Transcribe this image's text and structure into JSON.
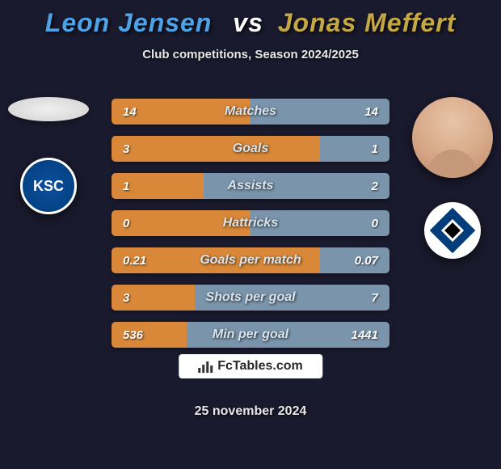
{
  "title": {
    "player1": "Leon Jensen",
    "vs": "vs",
    "player2": "Jonas Meffert",
    "player1_color": "#4da3e8",
    "player2_color": "#c4a845",
    "vs_color": "#ffffff",
    "fontsize": 32
  },
  "subtitle": {
    "text": "Club competitions, Season 2024/2025",
    "color": "#e8e8e8",
    "fontsize": 15
  },
  "clubs": {
    "left_label": "KSC",
    "left_bg": "#0d4f9e",
    "right_bg": "#003d7a"
  },
  "stats": {
    "left_color": "#d88838",
    "right_color": "#7a95ab",
    "label_color": "#d8e4ee",
    "value_color": "#ffffff",
    "label_fontsize": 16,
    "value_fontsize": 15,
    "rows": [
      {
        "label": "Matches",
        "left": "14",
        "right": "14",
        "left_pct": 50
      },
      {
        "label": "Goals",
        "left": "3",
        "right": "1",
        "left_pct": 75
      },
      {
        "label": "Assists",
        "left": "1",
        "right": "2",
        "left_pct": 33
      },
      {
        "label": "Hattricks",
        "left": "0",
        "right": "0",
        "left_pct": 50
      },
      {
        "label": "Goals per match",
        "left": "0.21",
        "right": "0.07",
        "left_pct": 75
      },
      {
        "label": "Shots per goal",
        "left": "3",
        "right": "7",
        "left_pct": 30
      },
      {
        "label": "Min per goal",
        "left": "536",
        "right": "1441",
        "left_pct": 27
      }
    ]
  },
  "footer": {
    "badge_text": "FcTables.com",
    "badge_bg": "#ffffff",
    "badge_color": "#2a2a2a",
    "badge_fontsize": 16,
    "date": "25 november 2024",
    "date_color": "#e8e8e8",
    "date_fontsize": 16
  },
  "background": "#1a1a2e"
}
